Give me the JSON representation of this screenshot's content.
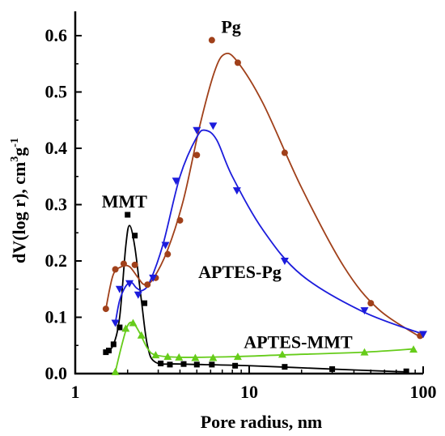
{
  "chart_data": {
    "type": "scatter",
    "x_scale": "log",
    "xlabel": "Pore radius, nm",
    "ylabel": "dV(log r), cm",
    "ylabel_sup1": "3",
    "ylabel_mid": "g",
    "ylabel_sup2": "-1",
    "xlim": [
      1,
      100
    ],
    "ylim": [
      0,
      0.65
    ],
    "x_ticks": [
      1,
      10,
      100
    ],
    "x_tick_labels": [
      "1",
      "10",
      "100"
    ],
    "y_ticks": [
      0.0,
      0.1,
      0.2,
      0.3,
      0.4,
      0.5,
      0.6
    ],
    "y_tick_labels": [
      "0.0",
      "0.1",
      "0.2",
      "0.3",
      "0.4",
      "0.5",
      "0.6"
    ],
    "grid": false,
    "legend": "none (series labelled directly on plot)",
    "series": [
      {
        "name": "MMT",
        "color": "#000000",
        "marker": "square",
        "points": [
          [
            1.5,
            0.038
          ],
          [
            1.56,
            0.041
          ],
          [
            1.66,
            0.052
          ],
          [
            1.8,
            0.082
          ],
          [
            2.0,
            0.282
          ],
          [
            2.2,
            0.245
          ],
          [
            2.5,
            0.125
          ],
          [
            3.1,
            0.018
          ],
          [
            3.5,
            0.016
          ],
          [
            4.2,
            0.017
          ],
          [
            5.0,
            0.016
          ],
          [
            6.1,
            0.016
          ],
          [
            8.3,
            0.014
          ],
          [
            16.0,
            0.012
          ],
          [
            30.0,
            0.008
          ],
          [
            80.0,
            0.004
          ]
        ],
        "curve": [
          [
            1.5,
            0.04
          ],
          [
            1.65,
            0.05
          ],
          [
            1.8,
            0.1
          ],
          [
            1.95,
            0.225
          ],
          [
            2.05,
            0.263
          ],
          [
            2.2,
            0.225
          ],
          [
            2.4,
            0.13
          ],
          [
            2.6,
            0.05
          ],
          [
            2.9,
            0.02
          ],
          [
            4.0,
            0.017
          ],
          [
            10.0,
            0.014
          ],
          [
            30.0,
            0.008
          ],
          [
            80.0,
            0.003
          ]
        ]
      },
      {
        "name": "Pg",
        "color": "#a0401a",
        "marker": "circle",
        "points": [
          [
            1.5,
            0.115
          ],
          [
            1.7,
            0.185
          ],
          [
            1.9,
            0.195
          ],
          [
            2.2,
            0.193
          ],
          [
            2.6,
            0.158
          ],
          [
            2.9,
            0.17
          ],
          [
            3.4,
            0.212
          ],
          [
            4.0,
            0.272
          ],
          [
            5.0,
            0.388
          ],
          [
            6.1,
            0.592
          ],
          [
            8.6,
            0.552
          ],
          [
            16.0,
            0.392
          ],
          [
            50.0,
            0.125
          ],
          [
            96.0,
            0.067
          ]
        ],
        "curve": [
          [
            1.5,
            0.115
          ],
          [
            1.65,
            0.175
          ],
          [
            1.85,
            0.19
          ],
          [
            2.05,
            0.19
          ],
          [
            2.3,
            0.17
          ],
          [
            2.5,
            0.158
          ],
          [
            2.8,
            0.168
          ],
          [
            3.4,
            0.22
          ],
          [
            4.2,
            0.31
          ],
          [
            5.2,
            0.44
          ],
          [
            6.3,
            0.535
          ],
          [
            7.2,
            0.567
          ],
          [
            8.5,
            0.555
          ],
          [
            12.0,
            0.48
          ],
          [
            20.0,
            0.33
          ],
          [
            35.0,
            0.19
          ],
          [
            55.0,
            0.115
          ],
          [
            96.0,
            0.065
          ]
        ]
      },
      {
        "name": "APTES-Pg",
        "color": "#1c1cdc",
        "marker": "triangle-down",
        "points": [
          [
            1.7,
            0.09
          ],
          [
            1.8,
            0.15
          ],
          [
            2.05,
            0.16
          ],
          [
            2.3,
            0.14
          ],
          [
            2.8,
            0.17
          ],
          [
            3.3,
            0.228
          ],
          [
            3.8,
            0.342
          ],
          [
            5.0,
            0.432
          ],
          [
            6.2,
            0.44
          ],
          [
            8.5,
            0.325
          ],
          [
            16.0,
            0.2
          ],
          [
            46.0,
            0.112
          ],
          [
            100.0,
            0.07
          ]
        ],
        "curve": [
          [
            1.7,
            0.09
          ],
          [
            1.8,
            0.13
          ],
          [
            1.95,
            0.155
          ],
          [
            2.1,
            0.162
          ],
          [
            2.25,
            0.152
          ],
          [
            2.45,
            0.148
          ],
          [
            2.7,
            0.165
          ],
          [
            3.2,
            0.23
          ],
          [
            4.0,
            0.35
          ],
          [
            5.0,
            0.42
          ],
          [
            5.6,
            0.432
          ],
          [
            6.5,
            0.415
          ],
          [
            8.0,
            0.35
          ],
          [
            12.0,
            0.255
          ],
          [
            20.0,
            0.175
          ],
          [
            45.0,
            0.11
          ],
          [
            100.0,
            0.07
          ]
        ]
      },
      {
        "name": "APTES-MMT",
        "color": "#66cc1a",
        "marker": "triangle-up",
        "points": [
          [
            1.7,
            0.003
          ],
          [
            1.95,
            0.08
          ],
          [
            2.15,
            0.09
          ],
          [
            2.4,
            0.068
          ],
          [
            2.9,
            0.033
          ],
          [
            3.4,
            0.03
          ],
          [
            3.95,
            0.029
          ],
          [
            4.9,
            0.028
          ],
          [
            6.2,
            0.028
          ],
          [
            8.6,
            0.03
          ],
          [
            15.5,
            0.034
          ],
          [
            46.0,
            0.038
          ],
          [
            88.0,
            0.043
          ]
        ],
        "curve": [
          [
            1.7,
            0.003
          ],
          [
            1.85,
            0.05
          ],
          [
            2.0,
            0.085
          ],
          [
            2.15,
            0.09
          ],
          [
            2.35,
            0.072
          ],
          [
            2.6,
            0.045
          ],
          [
            2.9,
            0.033
          ],
          [
            4.0,
            0.029
          ],
          [
            8.0,
            0.03
          ],
          [
            15.0,
            0.033
          ],
          [
            45.0,
            0.038
          ],
          [
            90.0,
            0.044
          ]
        ]
      }
    ],
    "annotations": [
      {
        "text": "MMT",
        "x": 1.42,
        "y": 0.295
      },
      {
        "text": "Pg",
        "x": 6.9,
        "y": 0.605
      },
      {
        "text": "APTES-Pg",
        "x": 5.1,
        "y": 0.17
      },
      {
        "text": "APTES-MMT",
        "x": 9.3,
        "y": 0.045
      }
    ]
  }
}
